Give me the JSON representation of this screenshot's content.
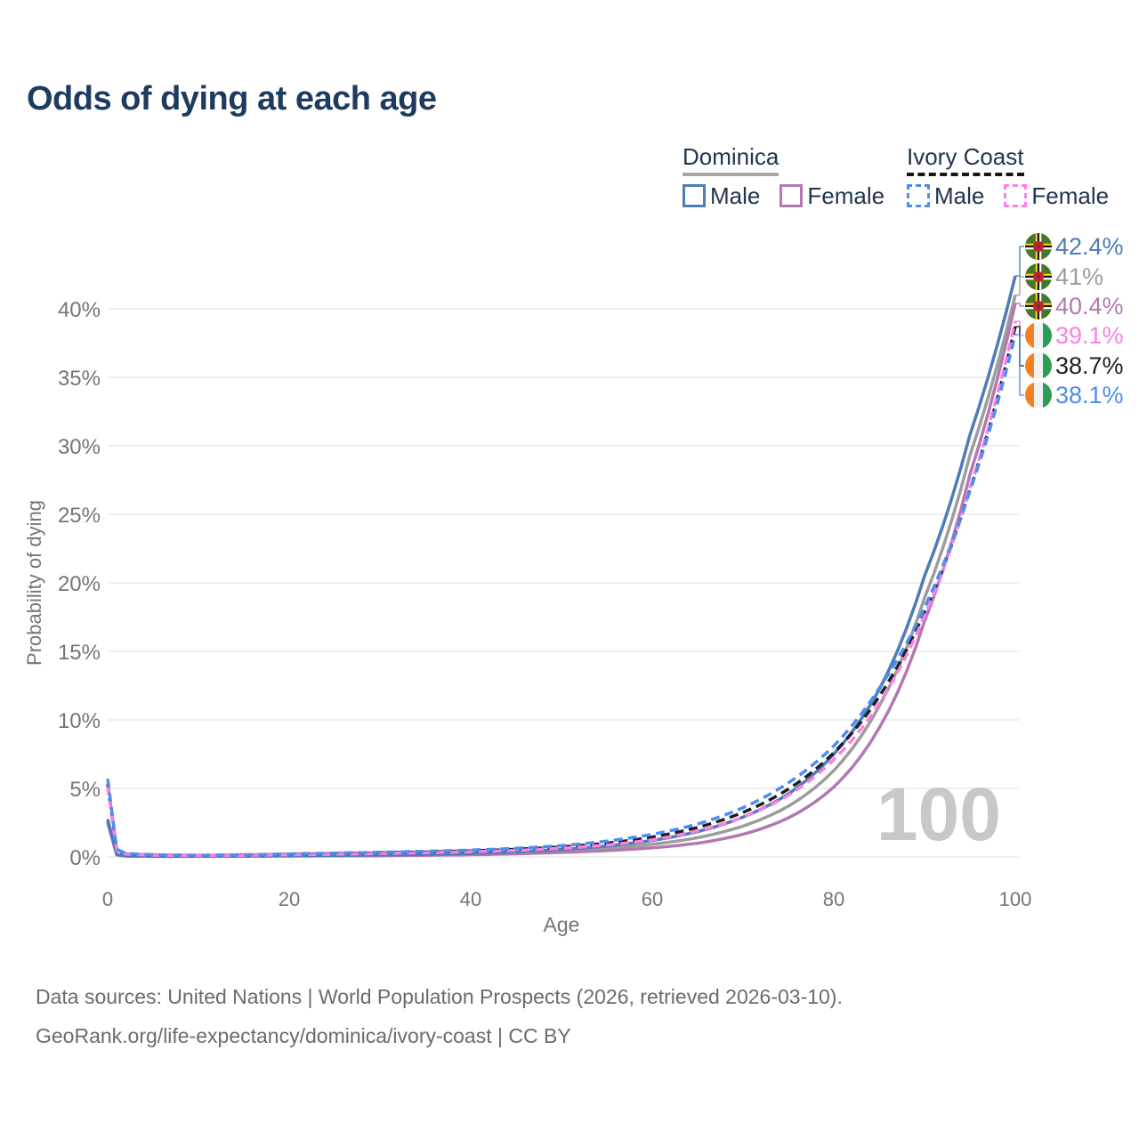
{
  "title": "Odds of dying at each age",
  "watermark": "100",
  "legend": {
    "groups": [
      {
        "name": "Dominica",
        "line_style": "solid",
        "underline_color": "#a8a8a8",
        "items": [
          {
            "label": "Male",
            "color": "#4d7cb7"
          },
          {
            "label": "Female",
            "color": "#b279b1"
          }
        ]
      },
      {
        "name": "Ivory Coast",
        "line_style": "dashed",
        "underline_color": "#161616",
        "items": [
          {
            "label": "Male",
            "color": "#4e8cf0"
          },
          {
            "label": "Female",
            "color": "#fb80e3"
          }
        ]
      }
    ]
  },
  "footer": {
    "line1": "Data sources: United Nations | World Population Prospects (2026, retrieved 2026-03-10).",
    "line2": "GeoRank.org/life-expectancy/dominica/ivory-coast | CC BY"
  },
  "chart_data": {
    "type": "line",
    "title": "Odds of dying at each age",
    "xlabel": "Age",
    "ylabel": "Probability of dying",
    "xlim": [
      0,
      100
    ],
    "ylim": [
      0,
      44
    ],
    "xticks": [
      0,
      20,
      40,
      60,
      80,
      100
    ],
    "yticks": [
      0,
      5,
      10,
      15,
      20,
      25,
      30,
      35,
      40
    ],
    "ytick_suffix": "%",
    "grid": true,
    "legend_position": "top-right",
    "x": [
      0,
      1,
      2,
      5,
      10,
      15,
      20,
      25,
      30,
      35,
      40,
      45,
      50,
      55,
      60,
      65,
      70,
      75,
      80,
      85,
      90,
      95,
      100
    ],
    "series": [
      {
        "name": "Dominica Male",
        "flag": "dominica",
        "dash": "solid",
        "color": "#4d7cb7",
        "end_label": "42.4%",
        "values": [
          2.75,
          0.18,
          0.08,
          0.05,
          0.05,
          0.07,
          0.1,
          0.12,
          0.15,
          0.19,
          0.26,
          0.38,
          0.55,
          0.8,
          1.2,
          1.85,
          2.9,
          4.6,
          7.5,
          12.2,
          20.5,
          30.8,
          42.4
        ]
      },
      {
        "name": "Dominica Overall",
        "flag": "dominica",
        "dash": "solid",
        "color": "#9c9c9c",
        "end_label": "41%",
        "values": [
          2.6,
          0.16,
          0.07,
          0.045,
          0.045,
          0.06,
          0.08,
          0.1,
          0.12,
          0.15,
          0.21,
          0.3,
          0.44,
          0.63,
          0.92,
          1.4,
          2.25,
          3.7,
          6.3,
          11.0,
          18.9,
          29.3,
          41.0
        ]
      },
      {
        "name": "Dominica Female",
        "flag": "dominica",
        "dash": "solid",
        "color": "#b279b1",
        "end_label": "40.4%",
        "values": [
          2.5,
          0.14,
          0.06,
          0.04,
          0.04,
          0.05,
          0.06,
          0.075,
          0.09,
          0.12,
          0.16,
          0.23,
          0.33,
          0.46,
          0.66,
          1.0,
          1.65,
          2.85,
          5.1,
          9.4,
          17.2,
          27.9,
          40.4
        ]
      },
      {
        "name": "Ivory Coast Female",
        "flag": "ivory-coast",
        "dash": "dashed",
        "color": "#fb80e3",
        "end_label": "39.1%",
        "values": [
          5.15,
          0.45,
          0.2,
          0.13,
          0.1,
          0.12,
          0.16,
          0.2,
          0.25,
          0.31,
          0.38,
          0.48,
          0.63,
          0.87,
          1.25,
          1.9,
          2.9,
          4.5,
          7.1,
          11.2,
          17.6,
          26.9,
          39.1
        ]
      },
      {
        "name": "Ivory Coast Overall",
        "flag": "ivory-coast",
        "dash": "dashed",
        "color": "#1f1f1f",
        "end_label": "38.7%",
        "values": [
          5.3,
          0.5,
          0.22,
          0.14,
          0.11,
          0.14,
          0.19,
          0.24,
          0.3,
          0.36,
          0.44,
          0.56,
          0.73,
          1.0,
          1.45,
          2.15,
          3.25,
          4.95,
          7.6,
          11.7,
          17.9,
          26.8,
          38.7
        ]
      },
      {
        "name": "Ivory Coast Male",
        "flag": "ivory-coast",
        "dash": "dashed",
        "color": "#4e8cf0",
        "end_label": "38.1%",
        "values": [
          5.7,
          0.55,
          0.25,
          0.16,
          0.12,
          0.16,
          0.22,
          0.28,
          0.34,
          0.41,
          0.5,
          0.63,
          0.82,
          1.15,
          1.65,
          2.4,
          3.6,
          5.4,
          8.1,
          12.3,
          18.2,
          26.7,
          38.1
        ]
      }
    ]
  }
}
